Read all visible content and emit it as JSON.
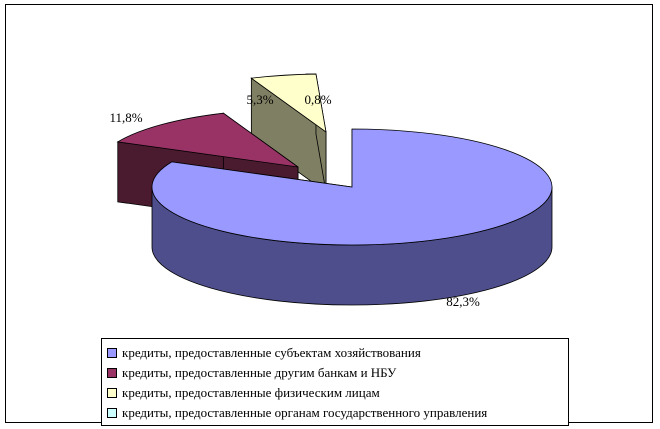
{
  "chart_data": {
    "type": "pie",
    "title": "",
    "series": [
      {
        "name": "кредиты, предоставленные субъектам хозяйствования",
        "value": 82.3,
        "label": "82,3%",
        "color": "#9999ff",
        "side": "#4e4e8c"
      },
      {
        "name": "кредиты, предоставленные другим банкам и НБУ",
        "value": 11.8,
        "label": "11,8%",
        "color": "#993366",
        "side": "#4a1a2e"
      },
      {
        "name": "кредиты, предоставленные физическим лицам",
        "value": 5.3,
        "label": "5,3%",
        "color": "#ffffcc",
        "side": "#7f7f63"
      },
      {
        "name": "кредиты, предоставленные органам государственного управления",
        "value": 0.8,
        "label": "0,8%",
        "color": "#ccffff",
        "side": "#5f8080"
      }
    ],
    "legend_position": "bottom",
    "exploded": true,
    "three_d": true
  }
}
